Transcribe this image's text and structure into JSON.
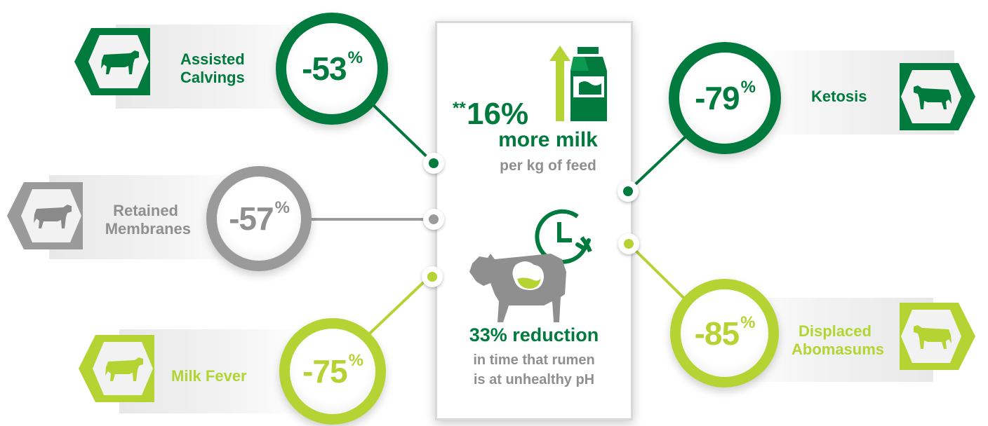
{
  "colors": {
    "dark_green": "#007a3d",
    "gray": "#9a9a9a",
    "lime": "#b6d334",
    "text_gray": "#8f8f8f"
  },
  "items": [
    {
      "id": "assisted-calvings",
      "label_line1": "Assisted",
      "label_line2": "Calvings",
      "value": "-53",
      "unit": "%",
      "color": "dark_green",
      "icon": "cow-icon"
    },
    {
      "id": "retained-membranes",
      "label_line1": "Retained",
      "label_line2": "Membranes",
      "value": "-57",
      "unit": "%",
      "color": "gray",
      "icon": "cow-icon"
    },
    {
      "id": "milk-fever",
      "label_line1": "Milk Fever",
      "label_line2": "",
      "value": "-75",
      "unit": "%",
      "color": "lime",
      "icon": "cow-icon"
    },
    {
      "id": "ketosis",
      "label_line1": "Ketosis",
      "label_line2": "",
      "value": "-79",
      "unit": "%",
      "color": "dark_green",
      "icon": "cow-icon"
    },
    {
      "id": "displaced-abomasums",
      "label_line1": "Displaced",
      "label_line2": "Abomasums",
      "value": "-85",
      "unit": "%",
      "color": "lime",
      "icon": "cow-icon"
    }
  ],
  "center": {
    "milk": {
      "prefix": "**",
      "value": "16%",
      "headline": "more milk",
      "subline": "per kg of feed",
      "icons": [
        "up-arrow-icon",
        "milk-carton-icon"
      ]
    },
    "rumen": {
      "headline": "33% reduction",
      "subline_line1": "in time that rumen",
      "subline_line2": "is at unhealthy pH",
      "icons": [
        "clock-cycle-icon",
        "cow-stomach-icon"
      ]
    }
  }
}
